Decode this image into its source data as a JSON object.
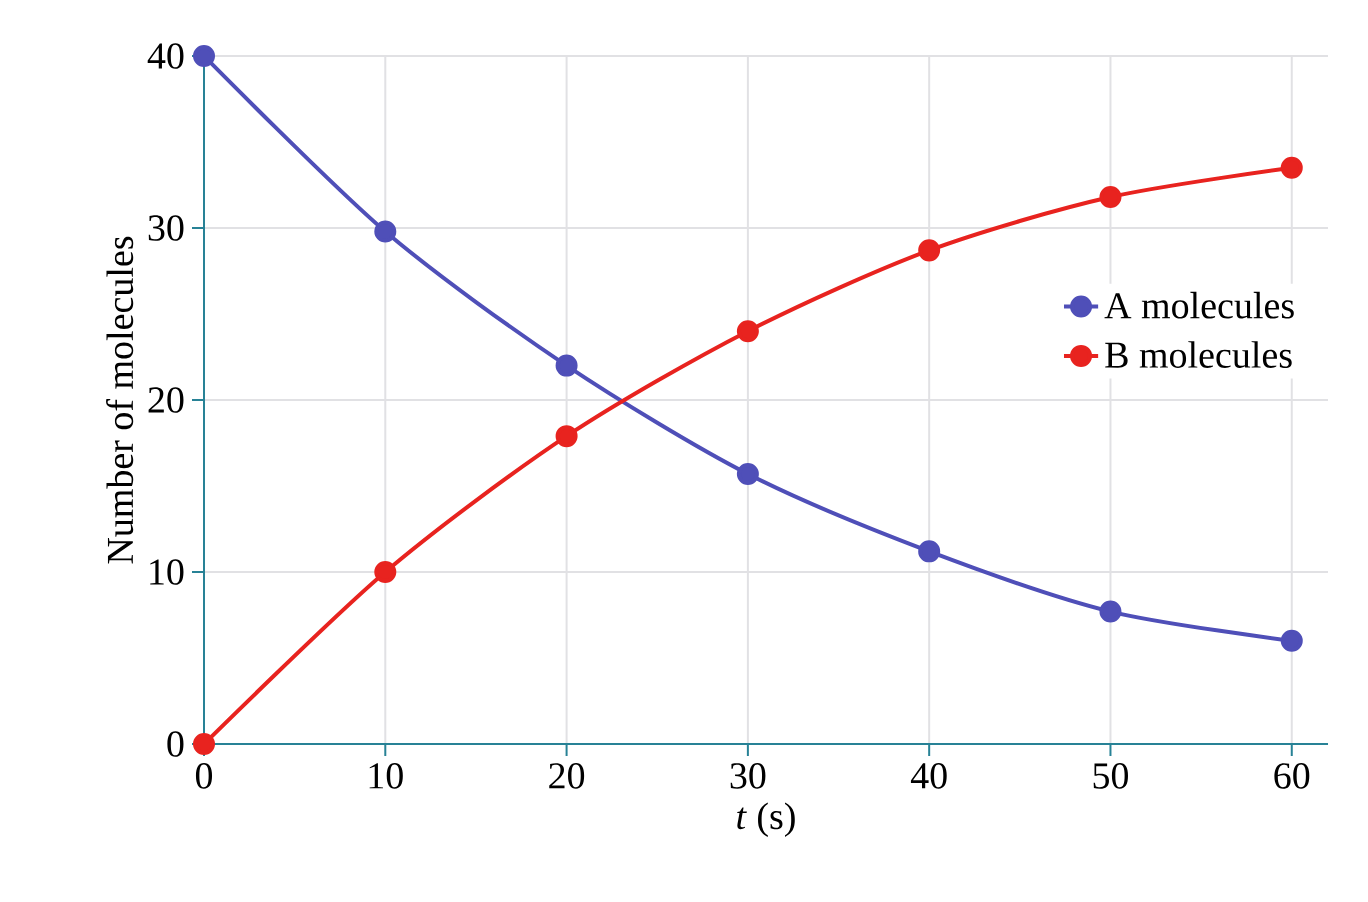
{
  "chart_data": {
    "type": "line",
    "xlabel": "*t* (s)",
    "ylabel": "Number of molecules",
    "x": [
      0,
      10,
      20,
      30,
      40,
      50,
      60
    ],
    "series": [
      {
        "name": "A molecules",
        "color": "#4f4fb8",
        "values": [
          40,
          29.8,
          22.0,
          15.7,
          11.2,
          7.7,
          6.0
        ]
      },
      {
        "name": "B molecules",
        "color": "#e8231f",
        "values": [
          0,
          10.0,
          17.9,
          24.0,
          28.7,
          31.8,
          33.5
        ]
      }
    ],
    "xlim": [
      0,
      62
    ],
    "ylim": [
      0,
      40
    ],
    "xticks": [
      0,
      10,
      20,
      30,
      40,
      50,
      60
    ],
    "yticks": [
      0,
      10,
      20,
      30,
      40
    ],
    "grid": true,
    "legend": "right",
    "marker": "circle",
    "line_style": "solid"
  }
}
